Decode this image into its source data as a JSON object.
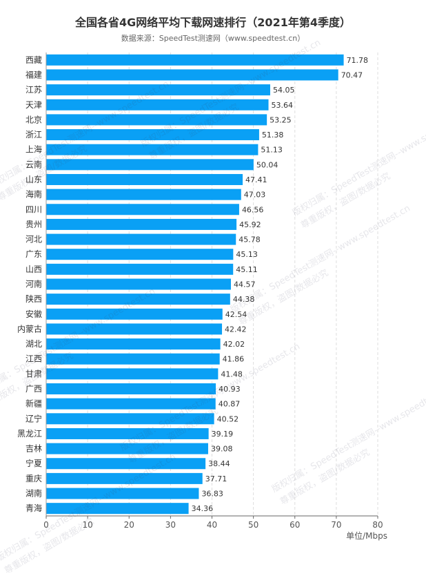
{
  "chart_data": {
    "type": "bar",
    "orientation": "horizontal",
    "title": "全国各省4G网络平均下载网速排行（2021年第4季度）",
    "subtitle": "数据来源：SpeedTest测速网（www.speedtest.cn）",
    "xlabel": "单位/Mbps",
    "ylabel": "",
    "xlim": [
      0,
      80
    ],
    "x_ticks": [
      "0",
      "10",
      "20",
      "30",
      "40",
      "50",
      "60",
      "70",
      "80"
    ],
    "grid": "vertical dashed",
    "bar_color": "#0aa0f5",
    "categories": [
      "西藏",
      "福建",
      "江苏",
      "天津",
      "北京",
      "浙江",
      "上海",
      "云南",
      "山东",
      "海南",
      "四川",
      "贵州",
      "河北",
      "广东",
      "山西",
      "河南",
      "陕西",
      "安徽",
      "内蒙古",
      "湖北",
      "江西",
      "甘肃",
      "广西",
      "新疆",
      "辽宁",
      "黑龙江",
      "吉林",
      "宁夏",
      "重庆",
      "湖南",
      "青海"
    ],
    "values": [
      71.78,
      70.47,
      54.05,
      53.64,
      53.25,
      51.38,
      51.13,
      50.04,
      47.41,
      47.03,
      46.56,
      45.92,
      45.78,
      45.13,
      45.11,
      44.57,
      44.38,
      42.54,
      42.42,
      42.02,
      41.86,
      41.48,
      40.93,
      40.87,
      40.52,
      39.19,
      39.08,
      38.44,
      37.71,
      36.83,
      34.36
    ],
    "value_labels": [
      "71.78",
      "70.47",
      "54.05",
      "53.64",
      "53.25",
      "51.38",
      "51.13",
      "50.04",
      "47.41",
      "47.03",
      "46.56",
      "45.92",
      "45.78",
      "45.13",
      "45.11",
      "44.57",
      "44.38",
      "42.54",
      "42.42",
      "42.02",
      "41.86",
      "41.48",
      "40.93",
      "40.87",
      "40.52",
      "39.19",
      "39.08",
      "38.44",
      "37.71",
      "36.83",
      "34.36"
    ]
  },
  "watermark": {
    "line1": "版权归属：SpeedTest测速网--www.speedtest.cn",
    "line2": "尊重版权，盗图/数据必究"
  }
}
